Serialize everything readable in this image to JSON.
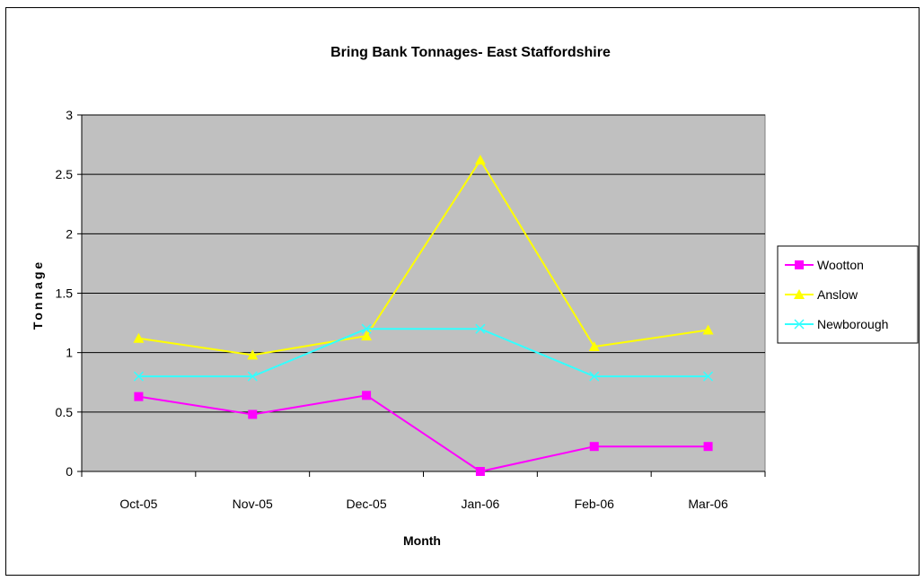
{
  "chart_data": {
    "type": "line",
    "title": "Bring Bank Tonnages- East Staffordshire",
    "xlabel": "Month",
    "ylabel": "Tonnage",
    "categories": [
      "Oct-05",
      "Nov-05",
      "Dec-05",
      "Jan-06",
      "Feb-06",
      "Mar-06"
    ],
    "ylim": [
      0,
      3
    ],
    "yticks": [
      "0",
      "0.5",
      "1",
      "1.5",
      "2",
      "2.5",
      "3"
    ],
    "grid": true,
    "legend": "right",
    "plot_background": "#c0c0c0",
    "series": [
      {
        "name": "Wootton",
        "color": "#ff00ff",
        "marker": "square",
        "values": [
          0.63,
          0.48,
          0.64,
          0.0,
          0.21,
          0.21
        ]
      },
      {
        "name": "Anslow",
        "color": "#ffff00",
        "marker": "triangle",
        "values": [
          1.12,
          0.98,
          1.14,
          2.62,
          1.05,
          1.19
        ]
      },
      {
        "name": "Newborough",
        "color": "#33ffff",
        "marker": "x",
        "values": [
          0.8,
          0.8,
          1.2,
          1.2,
          0.8,
          0.8
        ]
      }
    ]
  }
}
